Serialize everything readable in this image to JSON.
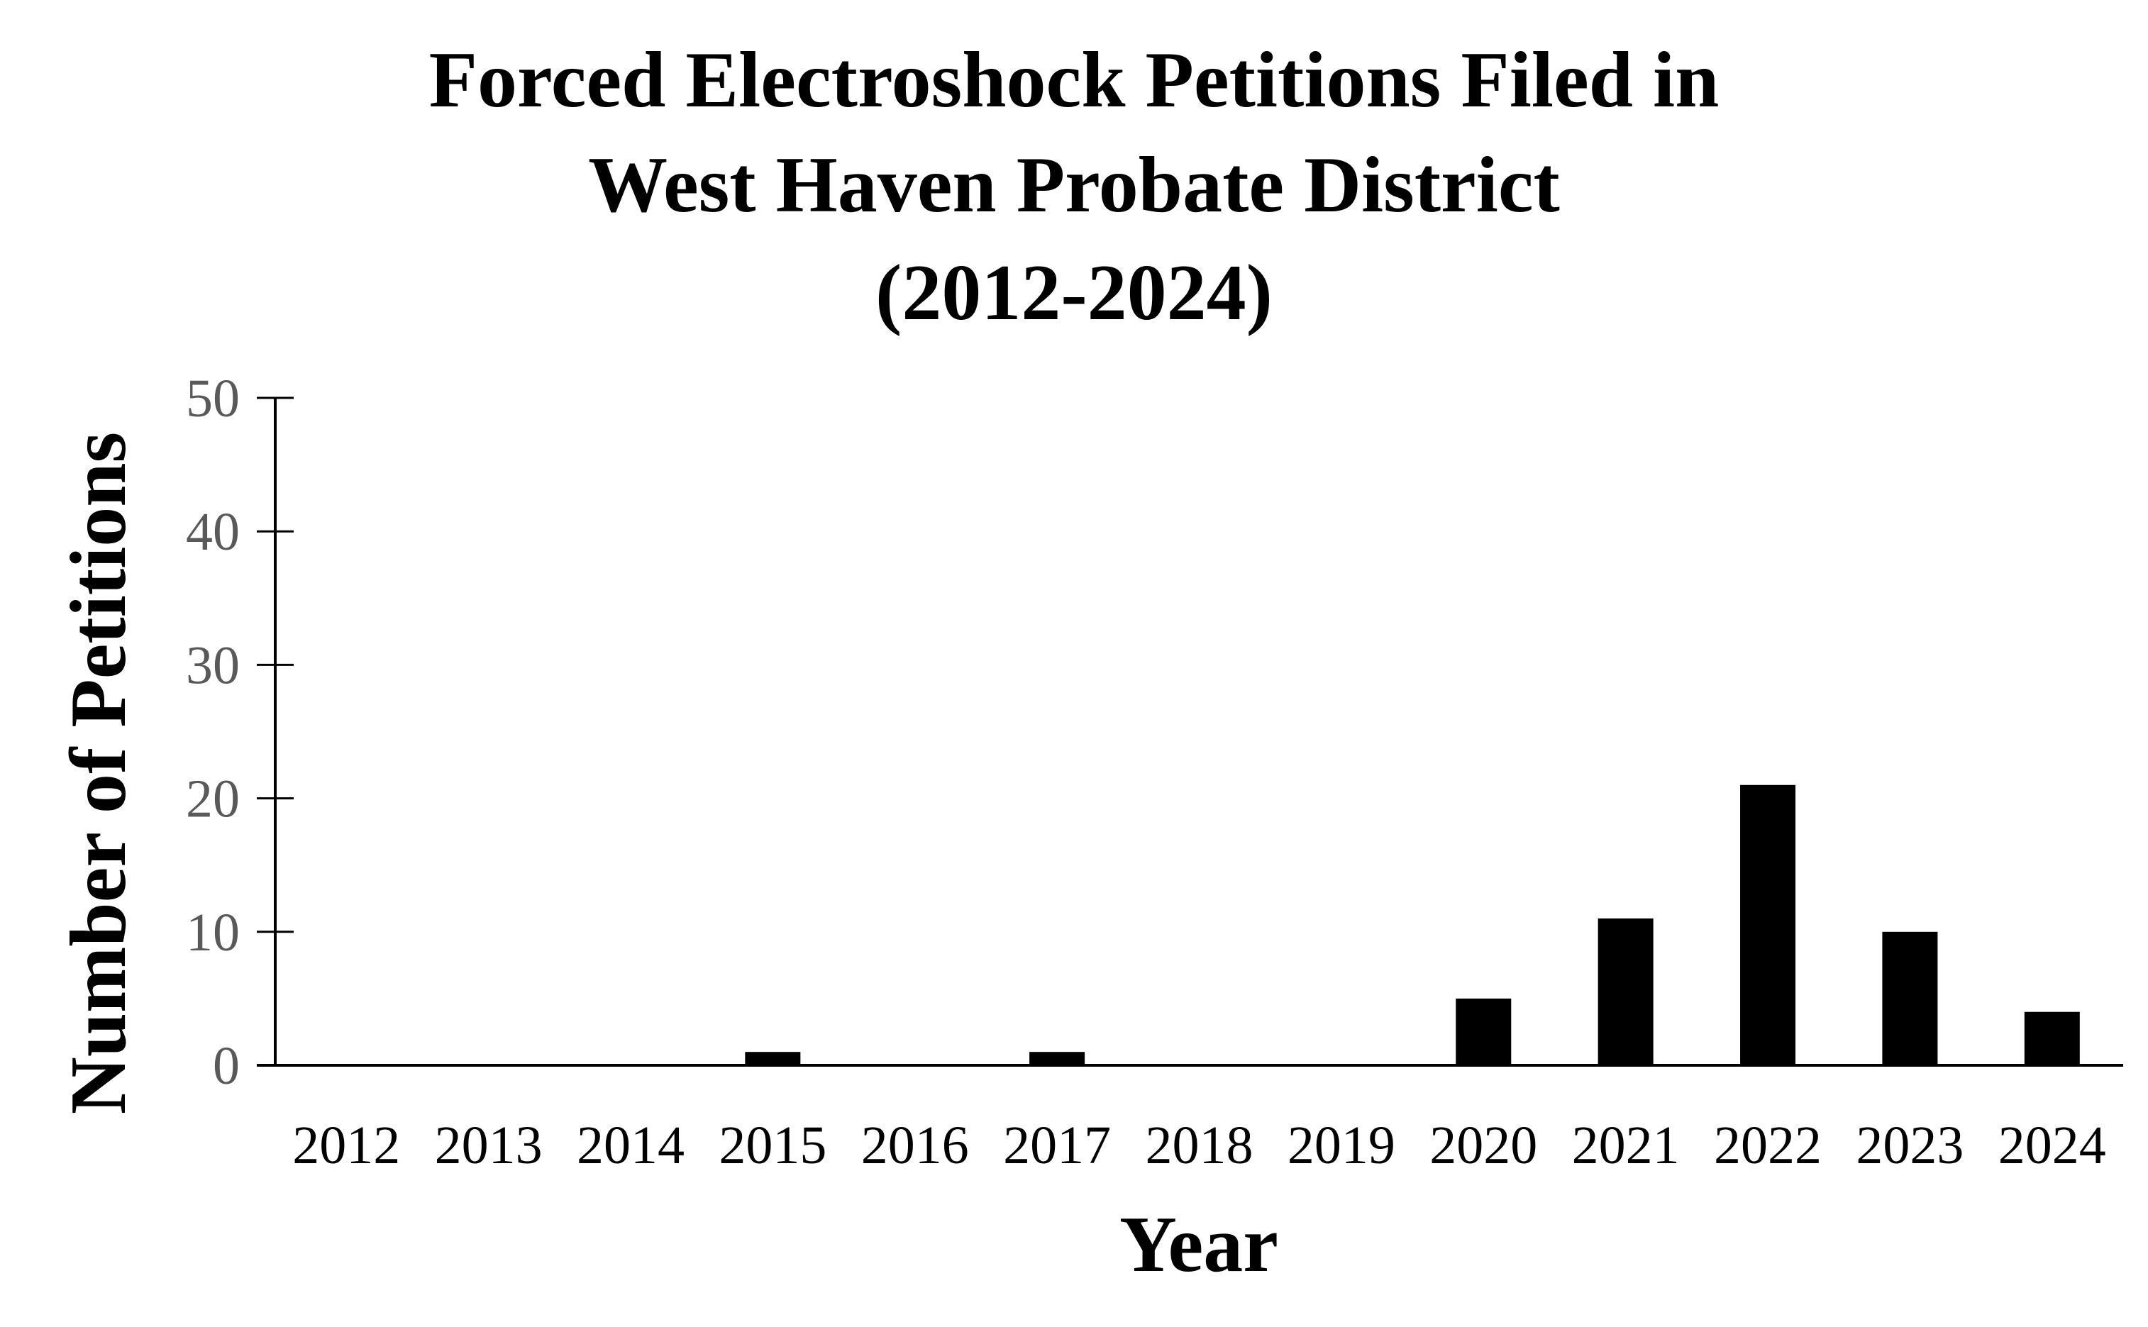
{
  "chart_data": {
    "type": "bar",
    "title_lines": [
      "Forced Electroshock Petitions Filed in",
      "West Haven Probate District",
      "(2012-2024)"
    ],
    "xlabel": "Year",
    "ylabel": "Number of Petitions",
    "categories": [
      "2012",
      "2013",
      "2014",
      "2015",
      "2016",
      "2017",
      "2018",
      "2019",
      "2020",
      "2021",
      "2022",
      "2023",
      "2024"
    ],
    "values": [
      0,
      0,
      0,
      1,
      0,
      1,
      0,
      0,
      5,
      11,
      21,
      10,
      4
    ],
    "ylim": [
      0,
      50
    ],
    "yticks": [
      "0",
      "10",
      "20",
      "30",
      "40",
      "50"
    ],
    "grid": false,
    "legend": "none",
    "bar_color": "#000000"
  }
}
